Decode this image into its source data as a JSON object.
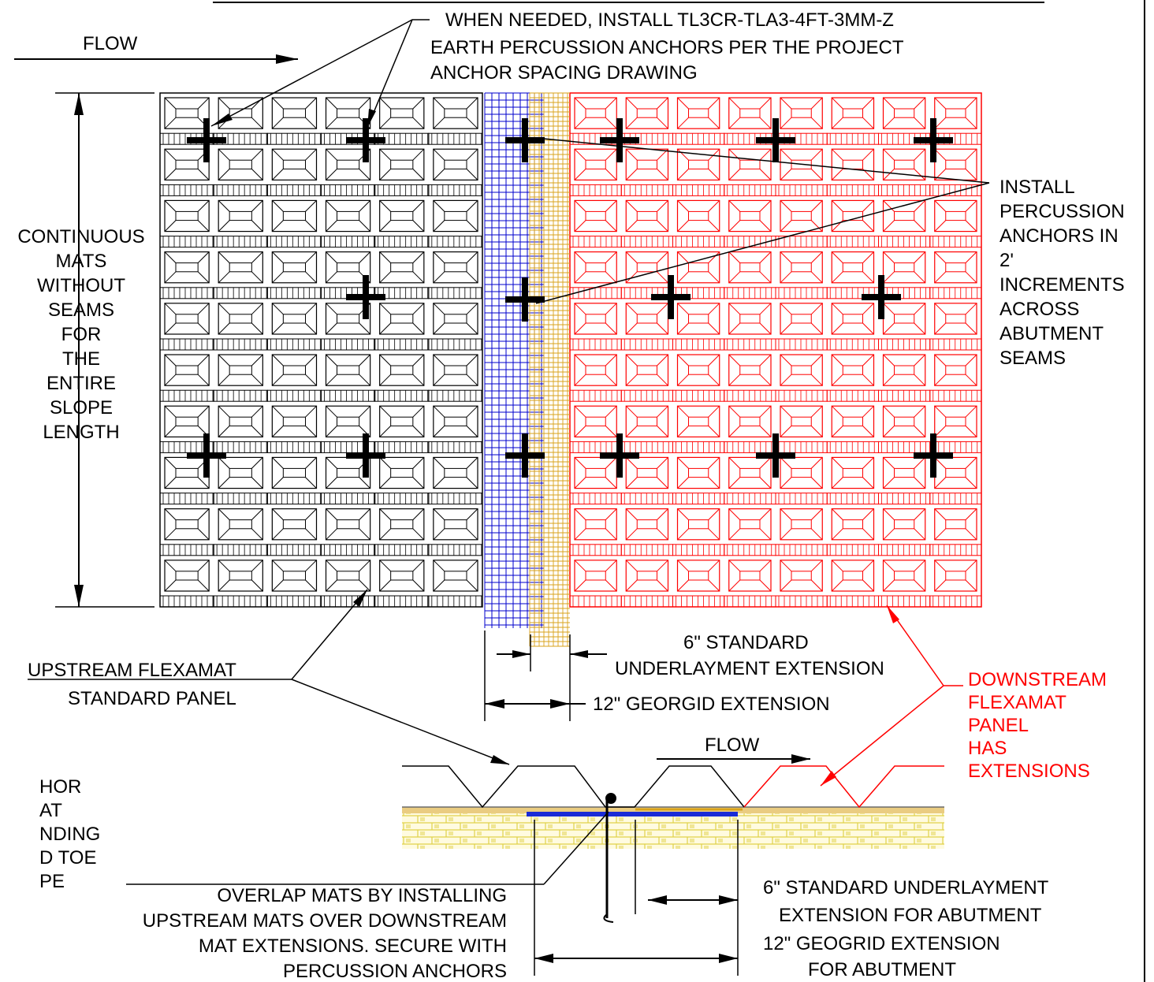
{
  "labels": {
    "flow_top": "FLOW",
    "flow_section": "FLOW",
    "anchor_note": [
      "WHEN NEEDED, INSTALL TL3CR-TLA3-4FT-3MM-Z",
      "EARTH PERCUSSION ANCHORS PER THE PROJECT",
      "ANCHOR SPACING DRAWING"
    ],
    "continuous_mats": [
      "CONTINUOUS",
      "MATS",
      "WITHOUT",
      "SEAMS",
      "FOR",
      "THE",
      "ENTIRE",
      "SLOPE",
      "LENGTH"
    ],
    "install_increments": [
      "INSTALL",
      "PERCUSSION",
      "ANCHORS IN",
      "2'",
      "INCREMENTS",
      "ACROSS",
      "ABUTMENT",
      "SEAMS"
    ],
    "underlayment_ext": [
      "6\" STANDARD",
      "UNDERLAYMENT EXTENSION"
    ],
    "georgid_ext": "12\" GEORGID EXTENSION",
    "upstream_panel": [
      "UPSTREAM FLEXAMAT",
      "STANDARD PANEL"
    ],
    "downstream_panel": [
      "DOWNSTREAM",
      "FLEXAMAT",
      "PANEL",
      "HAS",
      "EXTENSIONS"
    ],
    "left_cut": [
      "HOR",
      "AT",
      "NDING",
      "D  TOE",
      "PE"
    ],
    "overlap_note": [
      "OVERLAP MATS BY INSTALLING",
      "UPSTREAM MATS OVER DOWNSTREAM",
      "MAT EXTENSIONS. SECURE WITH",
      "PERCUSSION ANCHORS"
    ],
    "std_underlay_abut": [
      "6\" STANDARD UNDERLAYMENT",
      "EXTENSION FOR ABUTMENT"
    ],
    "geogrid_abut": [
      "12\" GEOGRID EXTENSION",
      "FOR ABUTMENT"
    ]
  },
  "colors": {
    "upstream": "#000000",
    "downstream": "#ff0000",
    "underlayment": "#0000cc",
    "geogrid": "#d9a21a",
    "soil": "#e8e070"
  }
}
